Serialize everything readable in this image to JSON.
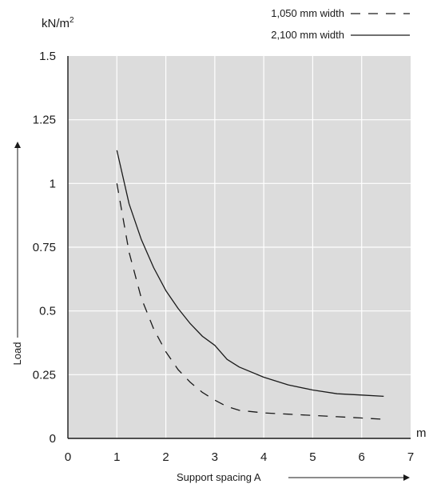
{
  "chart_data": {
    "type": "line",
    "unit_y": "kN/m",
    "unit_y_sup": "2",
    "unit_x": "m",
    "ylabel": "Load",
    "xlabel": "Support spacing A",
    "xlim": [
      0,
      7
    ],
    "ylim": [
      0,
      1.5
    ],
    "x_ticks": [
      "0",
      "1",
      "2",
      "3",
      "4",
      "5",
      "6",
      "7"
    ],
    "y_ticks": [
      "0",
      "0.25",
      "0.5",
      "0.75",
      "1",
      "1.25",
      "1.5"
    ],
    "x_tick_values": [
      0,
      1,
      2,
      3,
      4,
      5,
      6,
      7
    ],
    "y_tick_values": [
      0,
      0.25,
      0.5,
      0.75,
      1,
      1.25,
      1.5
    ],
    "grid": true,
    "legend_position": "top-right",
    "colors": {
      "plot_background": "#dcdcdc",
      "grid": "#ffffff",
      "line": "#1a1a1a"
    },
    "series": [
      {
        "name": "1,050 mm width",
        "style": "dashed",
        "x": [
          1.0,
          1.25,
          1.5,
          1.75,
          2.0,
          2.25,
          2.5,
          2.75,
          3.0,
          3.25,
          3.5,
          4.0,
          4.5,
          5.0,
          5.5,
          6.0,
          6.45
        ],
        "y": [
          1.0,
          0.73,
          0.55,
          0.43,
          0.34,
          0.27,
          0.22,
          0.18,
          0.15,
          0.125,
          0.11,
          0.1,
          0.095,
          0.09,
          0.085,
          0.08,
          0.075
        ]
      },
      {
        "name": "2,100 mm width",
        "style": "solid",
        "x": [
          1.0,
          1.25,
          1.5,
          1.75,
          2.0,
          2.25,
          2.5,
          2.75,
          3.0,
          3.25,
          3.5,
          4.0,
          4.5,
          5.0,
          5.5,
          6.0,
          6.45
        ],
        "y": [
          1.13,
          0.92,
          0.78,
          0.67,
          0.58,
          0.51,
          0.45,
          0.4,
          0.365,
          0.31,
          0.28,
          0.24,
          0.21,
          0.19,
          0.175,
          0.17,
          0.165
        ]
      }
    ]
  }
}
